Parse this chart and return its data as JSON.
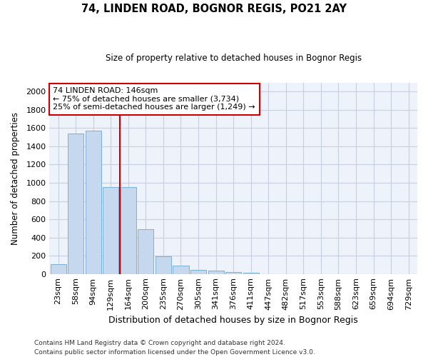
{
  "title_line1": "74, LINDEN ROAD, BOGNOR REGIS, PO21 2AY",
  "title_line2": "Size of property relative to detached houses in Bognor Regis",
  "xlabel": "Distribution of detached houses by size in Bognor Regis",
  "ylabel": "Number of detached properties",
  "categories": [
    "23sqm",
    "58sqm",
    "94sqm",
    "129sqm",
    "164sqm",
    "200sqm",
    "235sqm",
    "270sqm",
    "305sqm",
    "341sqm",
    "376sqm",
    "411sqm",
    "447sqm",
    "482sqm",
    "517sqm",
    "553sqm",
    "588sqm",
    "623sqm",
    "659sqm",
    "694sqm",
    "729sqm"
  ],
  "values": [
    110,
    1540,
    1570,
    950,
    950,
    490,
    190,
    95,
    45,
    35,
    20,
    15,
    0,
    0,
    0,
    0,
    0,
    0,
    0,
    0,
    0
  ],
  "bar_color": "#c5d8ee",
  "bar_edge_color": "#7ab0d8",
  "vline_color": "#cc0000",
  "vline_x": 3.5,
  "annotation_line1": "74 LINDEN ROAD: 146sqm",
  "annotation_line2": "← 75% of detached houses are smaller (3,734)",
  "annotation_line3": "25% of semi-detached houses are larger (1,249) →",
  "annotation_box_edge_color": "#cc0000",
  "ylim": [
    0,
    2100
  ],
  "yticks": [
    0,
    200,
    400,
    600,
    800,
    1000,
    1200,
    1400,
    1600,
    1800,
    2000
  ],
  "grid_color": "#c8d0e0",
  "bg_color": "#eef2fa",
  "footnote_line1": "Contains HM Land Registry data © Crown copyright and database right 2024.",
  "footnote_line2": "Contains public sector information licensed under the Open Government Licence v3.0."
}
